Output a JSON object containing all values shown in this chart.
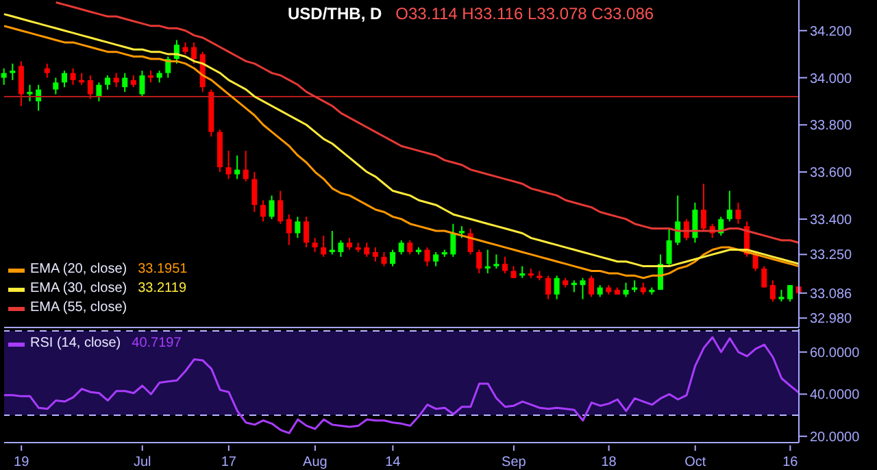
{
  "chart_data": [
    {
      "type": "candlestick",
      "title": "USD/THB, D",
      "subtitle": "O33.114 H33.116 L33.078 C33.086",
      "categories": [
        null,
        null,
        null,
        null,
        null,
        null,
        null,
        null,
        null,
        null,
        null,
        null,
        null,
        null,
        null,
        null,
        null,
        null,
        null,
        null,
        null,
        null,
        null,
        null,
        null,
        null,
        null,
        null,
        null,
        null,
        null,
        null,
        null,
        null,
        null,
        null,
        null,
        null,
        null,
        null,
        null,
        null,
        null,
        null,
        null,
        null,
        null,
        null,
        null,
        null,
        null,
        null,
        null,
        null,
        null,
        null,
        null,
        null,
        null,
        null,
        null,
        null,
        null,
        null,
        null,
        null,
        null,
        null,
        null,
        null,
        null,
        null,
        null,
        null,
        null,
        null,
        null,
        null,
        null,
        null,
        null,
        null,
        null,
        null,
        null,
        null,
        null,
        null,
        null,
        null,
        null,
        null,
        null
      ],
      "ohlc": [
        [
          34.0,
          34.04,
          33.97,
          34.02
        ],
        [
          34.02,
          34.06,
          33.99,
          34.03
        ],
        [
          34.05,
          34.07,
          33.88,
          33.93
        ],
        [
          33.93,
          33.97,
          33.9,
          33.94
        ],
        [
          33.9,
          33.97,
          33.86,
          33.95
        ],
        [
          34.04,
          34.06,
          34.0,
          34.02
        ],
        [
          33.95,
          34.0,
          33.93,
          33.98
        ],
        [
          33.98,
          34.03,
          33.96,
          34.02
        ],
        [
          34.02,
          34.04,
          33.97,
          33.99
        ],
        [
          33.99,
          34.02,
          33.97,
          33.98
        ],
        [
          33.99,
          34.01,
          33.91,
          33.93
        ],
        [
          33.92,
          33.98,
          33.9,
          33.97
        ],
        [
          33.97,
          34.01,
          33.95,
          34.0
        ],
        [
          34.0,
          34.02,
          33.96,
          33.98
        ],
        [
          33.96,
          34.02,
          33.94,
          34.0
        ],
        [
          33.99,
          34.01,
          33.96,
          33.97
        ],
        [
          33.93,
          34.03,
          33.92,
          34.01
        ],
        [
          34.01,
          34.03,
          33.98,
          34.0
        ],
        [
          34.0,
          34.03,
          33.98,
          34.02
        ],
        [
          34.02,
          34.09,
          34.0,
          34.08
        ],
        [
          34.08,
          34.16,
          34.06,
          34.14
        ],
        [
          34.13,
          34.15,
          34.1,
          34.11
        ],
        [
          34.13,
          34.15,
          34.06,
          34.08
        ],
        [
          34.1,
          34.11,
          33.94,
          33.96
        ],
        [
          33.94,
          33.95,
          33.75,
          33.77
        ],
        [
          33.77,
          33.78,
          33.6,
          33.62
        ],
        [
          33.62,
          33.69,
          33.57,
          33.59
        ],
        [
          33.59,
          33.67,
          33.57,
          33.61
        ],
        [
          33.61,
          33.69,
          33.56,
          33.57
        ],
        [
          33.57,
          33.6,
          33.43,
          33.46
        ],
        [
          33.46,
          33.48,
          33.39,
          33.41
        ],
        [
          33.41,
          33.5,
          33.4,
          33.48
        ],
        [
          33.48,
          33.52,
          33.38,
          33.39
        ],
        [
          33.4,
          33.42,
          33.29,
          33.34
        ],
        [
          33.34,
          33.41,
          33.32,
          33.39
        ],
        [
          33.39,
          33.41,
          33.28,
          33.3
        ],
        [
          33.3,
          33.32,
          33.26,
          33.28
        ],
        [
          33.28,
          33.33,
          33.24,
          33.25
        ],
        [
          33.26,
          33.35,
          33.25,
          33.27
        ],
        [
          33.26,
          33.31,
          33.24,
          33.3
        ],
        [
          33.3,
          33.32,
          33.27,
          33.28
        ],
        [
          33.28,
          33.3,
          33.26,
          33.27
        ],
        [
          33.28,
          33.3,
          33.24,
          33.25
        ],
        [
          33.26,
          33.28,
          33.22,
          33.24
        ],
        [
          33.24,
          33.26,
          33.2,
          33.21
        ],
        [
          33.21,
          33.27,
          33.2,
          33.26
        ],
        [
          33.26,
          33.31,
          33.25,
          33.3
        ],
        [
          33.3,
          33.31,
          33.25,
          33.26
        ],
        [
          33.26,
          33.28,
          33.25,
          33.27
        ],
        [
          33.27,
          33.28,
          33.2,
          33.22
        ],
        [
          33.22,
          33.26,
          33.2,
          33.25
        ],
        [
          33.25,
          33.27,
          33.24,
          33.26
        ],
        [
          33.25,
          33.38,
          33.24,
          33.34
        ],
        [
          33.34,
          33.37,
          33.32,
          33.35
        ],
        [
          33.34,
          33.36,
          33.25,
          33.26
        ],
        [
          33.26,
          33.27,
          33.17,
          33.19
        ],
        [
          33.19,
          33.27,
          33.17,
          33.2
        ],
        [
          33.2,
          33.25,
          33.19,
          33.21
        ],
        [
          33.21,
          33.24,
          33.17,
          33.18
        ],
        [
          33.18,
          33.2,
          33.15,
          33.15
        ],
        [
          33.16,
          33.2,
          33.15,
          33.17
        ],
        [
          33.17,
          33.19,
          33.15,
          33.16
        ],
        [
          33.16,
          33.18,
          33.14,
          33.15
        ],
        [
          33.15,
          33.16,
          33.06,
          33.08
        ],
        [
          33.08,
          33.16,
          33.06,
          33.15
        ],
        [
          33.14,
          33.15,
          33.11,
          33.12
        ],
        [
          33.12,
          33.14,
          33.09,
          33.13
        ],
        [
          33.12,
          33.15,
          33.06,
          33.14
        ],
        [
          33.15,
          33.16,
          33.07,
          33.08
        ],
        [
          33.08,
          33.12,
          33.07,
          33.11
        ],
        [
          33.11,
          33.12,
          33.08,
          33.09
        ],
        [
          33.1,
          33.11,
          33.08,
          33.08
        ],
        [
          33.08,
          33.13,
          33.07,
          33.1
        ],
        [
          33.1,
          33.14,
          33.09,
          33.11
        ],
        [
          33.11,
          33.13,
          33.08,
          33.09
        ],
        [
          33.09,
          33.11,
          33.08,
          33.1
        ],
        [
          33.1,
          33.25,
          33.1,
          33.21
        ],
        [
          33.21,
          33.36,
          33.2,
          33.31
        ],
        [
          33.3,
          33.5,
          33.29,
          33.39
        ],
        [
          33.39,
          33.4,
          33.31,
          33.32
        ],
        [
          33.32,
          33.47,
          33.3,
          33.44
        ],
        [
          33.44,
          33.55,
          33.35,
          33.36
        ],
        [
          33.37,
          33.38,
          33.32,
          33.34
        ],
        [
          33.34,
          33.41,
          33.33,
          33.4
        ],
        [
          33.4,
          33.52,
          33.39,
          33.44
        ],
        [
          33.44,
          33.47,
          33.38,
          33.4
        ],
        [
          33.37,
          33.39,
          33.24,
          33.25
        ],
        [
          33.25,
          33.26,
          33.18,
          33.19
        ],
        [
          33.19,
          33.2,
          33.11,
          33.11
        ],
        [
          33.12,
          33.14,
          33.05,
          33.06
        ],
        [
          33.06,
          33.1,
          33.05,
          33.07
        ],
        [
          33.06,
          33.12,
          33.05,
          33.12
        ],
        [
          33.114,
          33.116,
          33.078,
          33.086
        ]
      ],
      "colors": [
        "#00ff00",
        "#00ff00",
        "#ff0000",
        "#00ff00",
        "#00ff00",
        "#ff0000",
        "#00ff00",
        "#00ff00",
        "#ff0000",
        "#ff0000",
        "#ff0000",
        "#00ff00",
        "#00ff00",
        "#ff0000",
        "#00ff00",
        "#ff0000",
        "#00ff00",
        "#ff0000",
        "#00ff00",
        "#00ff00",
        "#00ff00",
        "#ff0000",
        "#ff0000",
        "#ff0000",
        "#ff0000",
        "#ff0000",
        "#ff0000",
        "#00ff00",
        "#ff0000",
        "#ff0000",
        "#ff0000",
        "#00ff00",
        "#ff0000",
        "#ff0000",
        "#00ff00",
        "#ff0000",
        "#ff0000",
        "#ff0000",
        "#00ff00",
        "#00ff00",
        "#ff0000",
        "#ff0000",
        "#ff0000",
        "#ff0000",
        "#ff0000",
        "#00ff00",
        "#00ff00",
        "#ff0000",
        "#00ff00",
        "#ff0000",
        "#00ff00",
        "#00ff00",
        "#00ff00",
        "#00ff00",
        "#ff0000",
        "#ff0000",
        "#00ff00",
        "#00ff00",
        "#ff0000",
        "#ff0000",
        "#00ff00",
        "#ff0000",
        "#ff0000",
        "#ff0000",
        "#00ff00",
        "#ff0000",
        "#00ff00",
        "#00ff00",
        "#ff0000",
        "#00ff00",
        "#ff0000",
        "#ff0000",
        "#00ff00",
        "#00ff00",
        "#ff0000",
        "#00ff00",
        "#00ff00",
        "#00ff00",
        "#00ff00",
        "#ff0000",
        "#00ff00",
        "#ff0000",
        "#ff0000",
        "#00ff00",
        "#00ff00",
        "#ff0000",
        "#ff0000",
        "#ff0000",
        "#ff0000",
        "#ff0000",
        "#00ff00",
        "#00ff00",
        "#ff0000"
      ],
      "series": [
        {
          "type": "line",
          "name": "EMA (20, close)",
          "color": "#ff9800",
          "values": [
            34.22,
            34.21,
            34.2,
            34.19,
            34.18,
            34.17,
            34.16,
            34.15,
            34.15,
            34.14,
            34.13,
            34.12,
            34.11,
            34.11,
            34.1,
            34.09,
            34.09,
            34.08,
            34.08,
            34.07,
            34.07,
            34.06,
            34.04,
            34.01,
            33.99,
            33.96,
            33.93,
            33.9,
            33.87,
            33.84,
            33.8,
            33.77,
            33.74,
            33.71,
            33.67,
            33.64,
            33.6,
            33.57,
            33.53,
            33.51,
            33.5,
            33.48,
            33.46,
            33.44,
            33.43,
            33.41,
            33.4,
            33.38,
            33.37,
            33.36,
            33.35,
            33.35,
            33.34,
            33.33,
            33.32,
            33.31,
            33.3,
            33.29,
            33.28,
            33.27,
            33.26,
            33.25,
            33.24,
            33.23,
            33.22,
            33.21,
            33.2,
            33.19,
            33.18,
            33.18,
            33.17,
            33.17,
            33.16,
            33.16,
            33.15,
            33.16,
            33.16,
            33.17,
            33.19,
            33.2,
            33.22,
            33.25,
            33.27,
            33.28,
            33.28,
            33.27,
            33.26,
            33.25,
            33.24,
            33.23,
            33.22,
            33.21,
            33.2
          ]
        },
        {
          "type": "line",
          "name": "EMA (30, close)",
          "color": "#ffeb3b",
          "values": [
            34.27,
            34.26,
            34.25,
            34.24,
            34.23,
            34.22,
            34.21,
            34.2,
            34.19,
            34.18,
            34.17,
            34.16,
            34.15,
            34.14,
            34.13,
            34.12,
            34.12,
            34.11,
            34.11,
            34.1,
            34.1,
            34.09,
            34.07,
            34.06,
            34.04,
            34.02,
            33.99,
            33.97,
            33.95,
            33.92,
            33.9,
            33.88,
            33.86,
            33.84,
            33.82,
            33.8,
            33.77,
            33.74,
            33.72,
            33.69,
            33.66,
            33.63,
            33.6,
            33.58,
            33.55,
            33.52,
            33.51,
            33.5,
            33.48,
            33.47,
            33.46,
            33.44,
            33.42,
            33.41,
            33.4,
            33.39,
            33.38,
            33.37,
            33.36,
            33.35,
            33.34,
            33.32,
            33.31,
            33.3,
            33.29,
            33.28,
            33.27,
            33.26,
            33.25,
            33.24,
            33.23,
            33.22,
            33.22,
            33.21,
            33.2,
            33.2,
            33.2,
            33.2,
            33.21,
            33.22,
            33.23,
            33.24,
            33.25,
            33.26,
            33.27,
            33.27,
            33.27,
            33.26,
            33.25,
            33.24,
            33.23,
            33.22,
            33.21
          ]
        },
        {
          "type": "line",
          "name": "EMA (55, close)",
          "color": "#e53935",
          "values": [
            null,
            null,
            null,
            null,
            null,
            null,
            34.32,
            34.31,
            34.3,
            34.29,
            34.28,
            34.27,
            34.26,
            34.26,
            34.25,
            34.24,
            34.23,
            34.22,
            34.22,
            34.21,
            34.21,
            34.2,
            34.18,
            34.17,
            34.15,
            34.13,
            34.11,
            34.09,
            34.07,
            34.06,
            34.04,
            34.02,
            34.01,
            33.99,
            33.97,
            33.94,
            33.92,
            33.9,
            33.88,
            33.85,
            33.83,
            33.81,
            33.79,
            33.77,
            33.75,
            33.73,
            33.71,
            33.7,
            33.69,
            33.68,
            33.67,
            33.65,
            33.64,
            33.63,
            33.61,
            33.6,
            33.59,
            33.58,
            33.57,
            33.56,
            33.55,
            33.53,
            33.52,
            33.51,
            33.5,
            33.48,
            33.47,
            33.46,
            33.45,
            33.43,
            33.42,
            33.41,
            33.4,
            33.38,
            33.37,
            33.36,
            33.36,
            33.36,
            33.35,
            33.35,
            33.35,
            33.35,
            33.35,
            33.35,
            33.36,
            33.36,
            33.35,
            33.34,
            33.33,
            33.32,
            33.31,
            33.31,
            33.3
          ]
        }
      ],
      "ylim": [
        32.94,
        34.33
      ],
      "yticks": [
        {
          "value": 32.98,
          "label": "32.980"
        },
        {
          "value": 33.086,
          "label": "33.086"
        },
        {
          "value": 33.25,
          "label": "33.250"
        },
        {
          "value": 33.4,
          "label": "33.400"
        },
        {
          "value": 33.6,
          "label": "33.600"
        },
        {
          "value": 33.8,
          "label": "33.800"
        },
        {
          "value": 34,
          "label": "34.000"
        },
        {
          "value": 34.2,
          "label": "34.200"
        }
      ],
      "tick_labels": "y",
      "ref_lines": [
        {
          "axis": "y",
          "value": 33.92,
          "color": "#b71c1c"
        }
      ],
      "annotations": [
        "33.1951",
        "33.2119"
      ],
      "legend": "bottom left"
    },
    {
      "type": "line",
      "categories": [
        null,
        null,
        "19",
        null,
        null,
        null,
        null,
        null,
        null,
        null,
        null,
        null,
        null,
        null,
        null,
        null,
        "Jul",
        null,
        null,
        null,
        null,
        null,
        null,
        null,
        null,
        null,
        "17",
        null,
        null,
        null,
        null,
        null,
        null,
        null,
        null,
        null,
        "Aug",
        null,
        null,
        null,
        null,
        null,
        null,
        null,
        null,
        "14",
        null,
        null,
        null,
        null,
        null,
        null,
        null,
        null,
        null,
        null,
        null,
        null,
        null,
        "Sep",
        null,
        null,
        null,
        null,
        null,
        null,
        null,
        null,
        null,
        null,
        "18",
        null,
        null,
        null,
        null,
        null,
        null,
        null,
        null,
        null,
        "Oct",
        null,
        null,
        null,
        null,
        null,
        null,
        null,
        null,
        null,
        null,
        "16",
        null
      ],
      "series": [
        {
          "name": "RSI (14, close)",
          "color": "#a83cff",
          "values": [
            39.5,
            39.5,
            39,
            39,
            33.5,
            33,
            37,
            36.5,
            38.5,
            42.5,
            41,
            40.5,
            37,
            41.5,
            41.5,
            40.5,
            44,
            40,
            45.5,
            46,
            46.5,
            51,
            56.5,
            56,
            52,
            42,
            41,
            32,
            26.5,
            25.5,
            27.5,
            26,
            23,
            21.5,
            28,
            25,
            23.5,
            28,
            25.5,
            25,
            24.5,
            25,
            28,
            27.5,
            27.5,
            26.5,
            26,
            25,
            29.5,
            35,
            33,
            33.5,
            30.5,
            34,
            34,
            45,
            45,
            38,
            34,
            34.5,
            36.5,
            35,
            33.5,
            33,
            33.5,
            33,
            32.5,
            27.5,
            36,
            34.5,
            35.5,
            37.5,
            32,
            38,
            36.5,
            35,
            38,
            40,
            37.5,
            39.5,
            53.5,
            62,
            67,
            60,
            66.5,
            60,
            58,
            61.5,
            63.5,
            57.5,
            47.5,
            44,
            40.7
          ]
        }
      ],
      "ylim": [
        17,
        71
      ],
      "yticks": [
        {
          "value": 20,
          "label": "20.0000"
        },
        {
          "value": 40,
          "label": "40.0000"
        },
        {
          "value": 60,
          "label": "60.0000"
        }
      ],
      "ref_lines": [
        {
          "axis": "y",
          "value": 70,
          "color": "#b9b9ff",
          "line_style": "dashed"
        },
        {
          "axis": "y",
          "value": 30,
          "color": "#b9b9ff",
          "line_style": "dashed"
        }
      ],
      "bands": [
        {
          "axis": "y",
          "from": 30,
          "to": 70,
          "color": "#1c0b4e"
        }
      ],
      "annotations": [
        "40.7197"
      ],
      "legend": "top left"
    }
  ]
}
